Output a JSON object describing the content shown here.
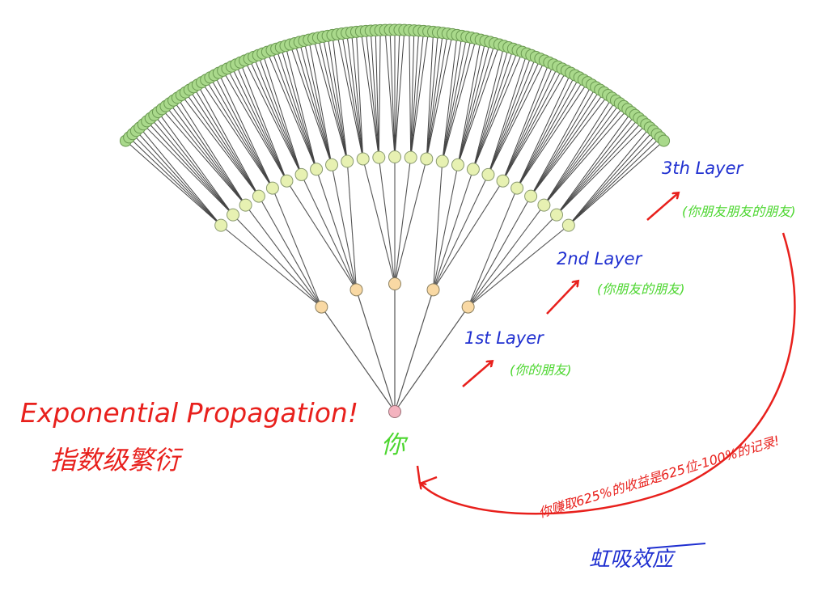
{
  "root": {
    "label": "你"
  },
  "layers": [
    {
      "title": "1st Layer",
      "note": "(你的朋友)"
    },
    {
      "title": "2nd Layer",
      "note": "(你朋友的朋友)"
    },
    {
      "title": "3th Layer",
      "note": "(你朋友朋友的朋友)"
    }
  ],
  "headline": {
    "english": "Exponential Propagation!",
    "chinese": "指数级繁衍"
  },
  "feedback": {
    "note": "你赚取625%的收益是625位-100%的记录!",
    "label": "虹吸效应"
  }
}
